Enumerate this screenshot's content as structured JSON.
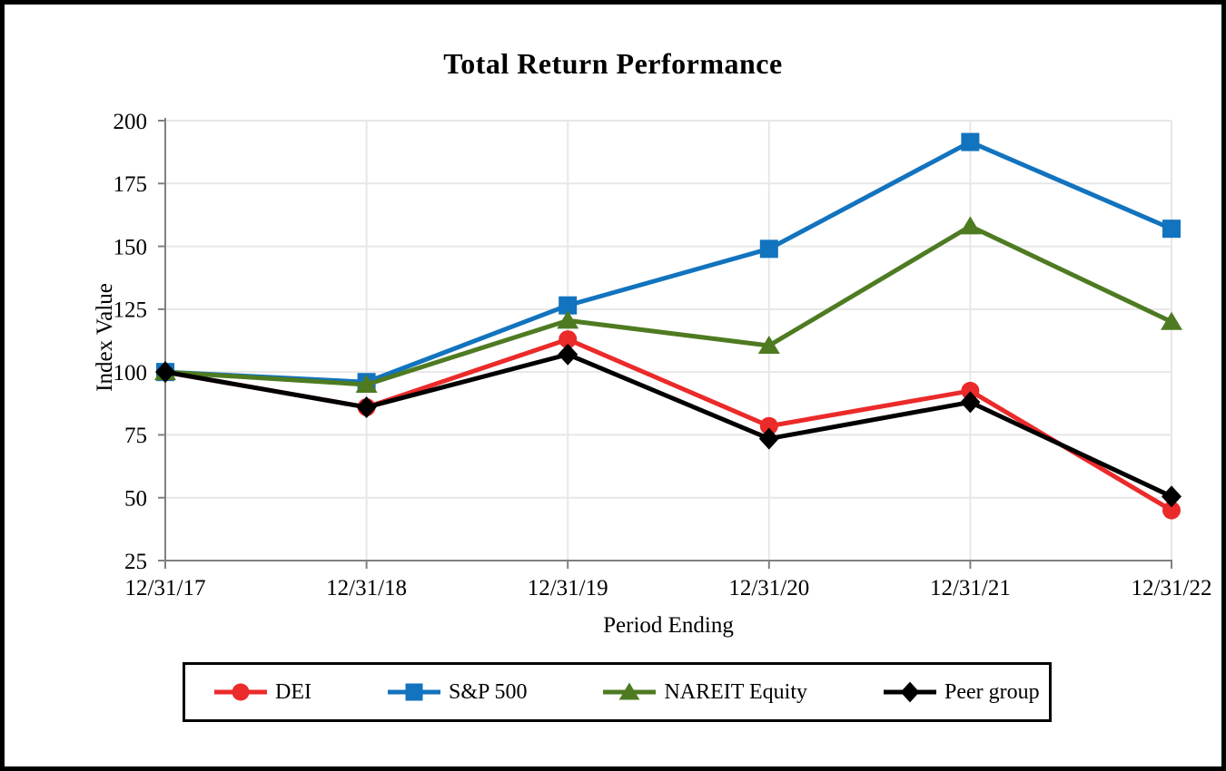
{
  "title": "Total Return Performance",
  "axes": {
    "y_label": "Index Value",
    "x_label": "Period Ending"
  },
  "chart_data": {
    "type": "line",
    "title": "Total Return Performance",
    "xlabel": "Period Ending",
    "ylabel": "Index Value",
    "ylim": [
      25,
      200
    ],
    "yticks": [
      200,
      175,
      150,
      125,
      100,
      75,
      50,
      25
    ],
    "grid": true,
    "legend_position": "bottom",
    "categories": [
      "12/31/17",
      "12/31/18",
      "12/31/19",
      "12/31/20",
      "12/31/21",
      "12/31/22"
    ],
    "series": [
      {
        "name": "DEI",
        "marker": "circle",
        "color": "#EB2A2A",
        "values": [
          100,
          86,
          113,
          78.5,
          92.5,
          45
        ]
      },
      {
        "name": "S&P 500",
        "marker": "square",
        "color": "#1273BE",
        "values": [
          100,
          96,
          126.5,
          149,
          191.5,
          157
        ]
      },
      {
        "name": "NAREIT Equity",
        "marker": "triangle",
        "color": "#4E7B22",
        "values": [
          100,
          95,
          120.5,
          110.5,
          158,
          120
        ]
      },
      {
        "name": "Peer group",
        "marker": "diamond",
        "color": "#000000",
        "values": [
          100,
          86,
          107,
          73.5,
          88,
          50.5
        ]
      }
    ]
  },
  "style_colors": {
    "gridline": "#E7E7E7",
    "axis": "#808080",
    "frame_border": "#000000",
    "background": "#FFFFFF"
  }
}
